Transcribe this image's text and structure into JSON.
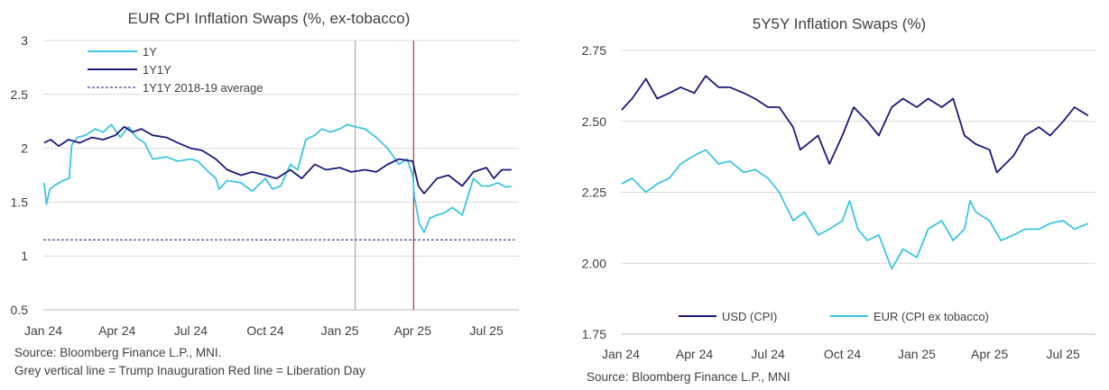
{
  "colors": {
    "navy": "#1a1a7a",
    "cyan": "#3ec6e0",
    "grid": "#d9d9d9",
    "axis": "#bfbfbf",
    "grey_line": "#9a9a9a",
    "red_line": "#a01020"
  },
  "footnotes": {
    "left_source": "Source: Bloomberg Finance L.P., MNI.",
    "left_note": "Grey vertical line = Trump Inauguration  Red line = Liberation Day",
    "right_source": "Source: Bloomberg Finance L.P., MNI"
  },
  "chart_data": [
    {
      "type": "line",
      "title": "EUR CPI Inflation Swaps (%, ex-tobacco)",
      "xlabel": "",
      "ylabel": "",
      "ylim": [
        0.5,
        3
      ],
      "yticks": [
        "3",
        "2.5",
        "2",
        "1.5",
        "1",
        "0.5"
      ],
      "xlim": [
        "2024-01-01",
        "2025-08-10"
      ],
      "xticks": [
        {
          "date": "2024-01-01",
          "label": "Jan 24"
        },
        {
          "date": "2024-04-01",
          "label": "Apr 24"
        },
        {
          "date": "2024-07-01",
          "label": "Jul 24"
        },
        {
          "date": "2024-10-01",
          "label": "Oct 24"
        },
        {
          "date": "2025-01-01",
          "label": "Jan 25"
        },
        {
          "date": "2025-04-01",
          "label": "Apr 25"
        },
        {
          "date": "2025-07-01",
          "label": "Jul 25"
        }
      ],
      "grid": true,
      "legend": "top-left",
      "vlines": [
        {
          "date": "2025-01-20",
          "color": "#9a9a9a"
        },
        {
          "date": "2025-04-02",
          "color": "#a01020"
        }
      ],
      "series": [
        {
          "name": "1Y",
          "color": "#3ec6e0",
          "points": [
            [
              "2024-01-02",
              1.68
            ],
            [
              "2024-01-05",
              1.48
            ],
            [
              "2024-01-09",
              1.62
            ],
            [
              "2024-01-16",
              1.66
            ],
            [
              "2024-01-25",
              1.7
            ],
            [
              "2024-02-02",
              1.72
            ],
            [
              "2024-02-05",
              2.03
            ],
            [
              "2024-02-12",
              2.1
            ],
            [
              "2024-02-22",
              2.12
            ],
            [
              "2024-03-05",
              2.18
            ],
            [
              "2024-03-15",
              2.15
            ],
            [
              "2024-03-25",
              2.22
            ],
            [
              "2024-04-05",
              2.1
            ],
            [
              "2024-04-15",
              2.2
            ],
            [
              "2024-04-25",
              2.1
            ],
            [
              "2024-05-05",
              2.05
            ],
            [
              "2024-05-15",
              1.9
            ],
            [
              "2024-06-01",
              1.92
            ],
            [
              "2024-06-15",
              1.88
            ],
            [
              "2024-07-01",
              1.9
            ],
            [
              "2024-07-10",
              1.88
            ],
            [
              "2024-07-20",
              1.8
            ],
            [
              "2024-08-01",
              1.72
            ],
            [
              "2024-08-05",
              1.62
            ],
            [
              "2024-08-15",
              1.7
            ],
            [
              "2024-09-01",
              1.68
            ],
            [
              "2024-09-15",
              1.6
            ],
            [
              "2024-10-01",
              1.72
            ],
            [
              "2024-10-10",
              1.62
            ],
            [
              "2024-10-20",
              1.65
            ],
            [
              "2024-11-01",
              1.85
            ],
            [
              "2024-11-10",
              1.8
            ],
            [
              "2024-11-20",
              2.08
            ],
            [
              "2024-12-01",
              2.12
            ],
            [
              "2024-12-10",
              2.18
            ],
            [
              "2024-12-20",
              2.15
            ],
            [
              "2025-01-01",
              2.18
            ],
            [
              "2025-01-10",
              2.22
            ],
            [
              "2025-01-20",
              2.2
            ],
            [
              "2025-02-01",
              2.18
            ],
            [
              "2025-02-15",
              2.1
            ],
            [
              "2025-03-01",
              2.0
            ],
            [
              "2025-03-15",
              1.85
            ],
            [
              "2025-03-25",
              1.9
            ],
            [
              "2025-04-01",
              1.75
            ],
            [
              "2025-04-03",
              1.55
            ],
            [
              "2025-04-09",
              1.3
            ],
            [
              "2025-04-15",
              1.22
            ],
            [
              "2025-04-22",
              1.35
            ],
            [
              "2025-05-01",
              1.38
            ],
            [
              "2025-05-10",
              1.4
            ],
            [
              "2025-05-20",
              1.45
            ],
            [
              "2025-06-01",
              1.38
            ],
            [
              "2025-06-08",
              1.55
            ],
            [
              "2025-06-15",
              1.72
            ],
            [
              "2025-06-25",
              1.65
            ],
            [
              "2025-07-05",
              1.65
            ],
            [
              "2025-07-15",
              1.68
            ],
            [
              "2025-07-25",
              1.64
            ],
            [
              "2025-08-01",
              1.65
            ]
          ]
        },
        {
          "name": "1Y1Y",
          "color": "#1a1a7a",
          "points": [
            [
              "2024-01-02",
              2.05
            ],
            [
              "2024-01-10",
              2.08
            ],
            [
              "2024-01-20",
              2.02
            ],
            [
              "2024-02-01",
              2.08
            ],
            [
              "2024-02-15",
              2.05
            ],
            [
              "2024-03-01",
              2.1
            ],
            [
              "2024-03-15",
              2.08
            ],
            [
              "2024-03-30",
              2.12
            ],
            [
              "2024-04-10",
              2.2
            ],
            [
              "2024-04-20",
              2.15
            ],
            [
              "2024-05-01",
              2.18
            ],
            [
              "2024-05-15",
              2.12
            ],
            [
              "2024-06-01",
              2.1
            ],
            [
              "2024-06-15",
              2.05
            ],
            [
              "2024-07-01",
              2.0
            ],
            [
              "2024-07-15",
              1.98
            ],
            [
              "2024-08-01",
              1.9
            ],
            [
              "2024-08-15",
              1.8
            ],
            [
              "2024-09-01",
              1.75
            ],
            [
              "2024-09-15",
              1.78
            ],
            [
              "2024-10-01",
              1.75
            ],
            [
              "2024-10-15",
              1.72
            ],
            [
              "2024-11-01",
              1.8
            ],
            [
              "2024-11-15",
              1.72
            ],
            [
              "2024-12-01",
              1.85
            ],
            [
              "2024-12-15",
              1.8
            ],
            [
              "2025-01-01",
              1.82
            ],
            [
              "2025-01-15",
              1.78
            ],
            [
              "2025-02-01",
              1.8
            ],
            [
              "2025-02-15",
              1.78
            ],
            [
              "2025-03-01",
              1.85
            ],
            [
              "2025-03-15",
              1.9
            ],
            [
              "2025-04-01",
              1.88
            ],
            [
              "2025-04-08",
              1.65
            ],
            [
              "2025-04-15",
              1.58
            ],
            [
              "2025-05-01",
              1.72
            ],
            [
              "2025-05-15",
              1.75
            ],
            [
              "2025-06-01",
              1.65
            ],
            [
              "2025-06-15",
              1.78
            ],
            [
              "2025-07-01",
              1.82
            ],
            [
              "2025-07-10",
              1.72
            ],
            [
              "2025-07-20",
              1.8
            ],
            [
              "2025-08-01",
              1.8
            ]
          ]
        },
        {
          "name": "1Y1Y 2018-19 average",
          "color": "#1a1a7a",
          "dashed": true,
          "points": [
            [
              "2024-01-01",
              1.15
            ],
            [
              "2025-08-05",
              1.15
            ]
          ]
        }
      ]
    },
    {
      "type": "line",
      "title": "5Y5Y Inflation Swaps (%)",
      "xlabel": "",
      "ylabel": "",
      "ylim": [
        1.75,
        2.75
      ],
      "yticks": [
        "2.75",
        "2.50",
        "2.25",
        "2.00",
        "1.75"
      ],
      "xlim": [
        "2024-01-01",
        "2025-08-10"
      ],
      "xticks": [
        {
          "date": "2024-01-01",
          "label": "Jan 24"
        },
        {
          "date": "2024-04-01",
          "label": "Apr 24"
        },
        {
          "date": "2024-07-01",
          "label": "Jul 24"
        },
        {
          "date": "2024-10-01",
          "label": "Oct 24"
        },
        {
          "date": "2025-01-01",
          "label": "Jan 25"
        },
        {
          "date": "2025-04-01",
          "label": "Apr 25"
        },
        {
          "date": "2025-07-01",
          "label": "Jul 25"
        }
      ],
      "grid": true,
      "legend": "bottom",
      "series": [
        {
          "name": "USD (CPI)",
          "color": "#1a1a7a",
          "points": [
            [
              "2024-01-02",
              2.54
            ],
            [
              "2024-01-15",
              2.58
            ],
            [
              "2024-02-01",
              2.65
            ],
            [
              "2024-02-15",
              2.58
            ],
            [
              "2024-03-01",
              2.6
            ],
            [
              "2024-03-15",
              2.62
            ],
            [
              "2024-04-01",
              2.6
            ],
            [
              "2024-04-15",
              2.66
            ],
            [
              "2024-05-01",
              2.62
            ],
            [
              "2024-05-15",
              2.62
            ],
            [
              "2024-06-01",
              2.6
            ],
            [
              "2024-06-15",
              2.58
            ],
            [
              "2024-07-01",
              2.55
            ],
            [
              "2024-07-15",
              2.55
            ],
            [
              "2024-08-01",
              2.48
            ],
            [
              "2024-08-10",
              2.4
            ],
            [
              "2024-09-01",
              2.45
            ],
            [
              "2024-09-15",
              2.35
            ],
            [
              "2024-10-01",
              2.45
            ],
            [
              "2024-10-15",
              2.55
            ],
            [
              "2024-11-01",
              2.5
            ],
            [
              "2024-11-15",
              2.45
            ],
            [
              "2024-12-01",
              2.55
            ],
            [
              "2024-12-15",
              2.58
            ],
            [
              "2025-01-01",
              2.55
            ],
            [
              "2025-01-15",
              2.58
            ],
            [
              "2025-02-01",
              2.55
            ],
            [
              "2025-02-15",
              2.58
            ],
            [
              "2025-03-01",
              2.45
            ],
            [
              "2025-03-15",
              2.42
            ],
            [
              "2025-04-01",
              2.4
            ],
            [
              "2025-04-10",
              2.32
            ],
            [
              "2025-05-01",
              2.38
            ],
            [
              "2025-05-15",
              2.45
            ],
            [
              "2025-06-01",
              2.48
            ],
            [
              "2025-06-15",
              2.45
            ],
            [
              "2025-07-01",
              2.5
            ],
            [
              "2025-07-15",
              2.55
            ],
            [
              "2025-08-01",
              2.52
            ]
          ]
        },
        {
          "name": "EUR (CPI ex tobacco)",
          "color": "#3ec6e0",
          "points": [
            [
              "2024-01-02",
              2.28
            ],
            [
              "2024-01-15",
              2.3
            ],
            [
              "2024-02-01",
              2.25
            ],
            [
              "2024-02-15",
              2.28
            ],
            [
              "2024-03-01",
              2.3
            ],
            [
              "2024-03-15",
              2.35
            ],
            [
              "2024-04-01",
              2.38
            ],
            [
              "2024-04-15",
              2.4
            ],
            [
              "2024-05-01",
              2.35
            ],
            [
              "2024-05-15",
              2.36
            ],
            [
              "2024-06-01",
              2.32
            ],
            [
              "2024-06-15",
              2.33
            ],
            [
              "2024-07-01",
              2.3
            ],
            [
              "2024-07-15",
              2.25
            ],
            [
              "2024-08-01",
              2.15
            ],
            [
              "2024-08-15",
              2.18
            ],
            [
              "2024-09-01",
              2.1
            ],
            [
              "2024-09-15",
              2.12
            ],
            [
              "2024-10-01",
              2.15
            ],
            [
              "2024-10-10",
              2.22
            ],
            [
              "2024-10-20",
              2.12
            ],
            [
              "2024-11-01",
              2.08
            ],
            [
              "2024-11-15",
              2.1
            ],
            [
              "2024-12-01",
              1.98
            ],
            [
              "2024-12-15",
              2.05
            ],
            [
              "2025-01-01",
              2.02
            ],
            [
              "2025-01-15",
              2.12
            ],
            [
              "2025-02-01",
              2.15
            ],
            [
              "2025-02-15",
              2.08
            ],
            [
              "2025-03-01",
              2.12
            ],
            [
              "2025-03-08",
              2.22
            ],
            [
              "2025-03-15",
              2.18
            ],
            [
              "2025-04-01",
              2.15
            ],
            [
              "2025-04-15",
              2.08
            ],
            [
              "2025-05-01",
              2.1
            ],
            [
              "2025-05-15",
              2.12
            ],
            [
              "2025-06-01",
              2.12
            ],
            [
              "2025-06-15",
              2.14
            ],
            [
              "2025-07-01",
              2.15
            ],
            [
              "2025-07-15",
              2.12
            ],
            [
              "2025-08-01",
              2.14
            ]
          ]
        }
      ]
    }
  ]
}
